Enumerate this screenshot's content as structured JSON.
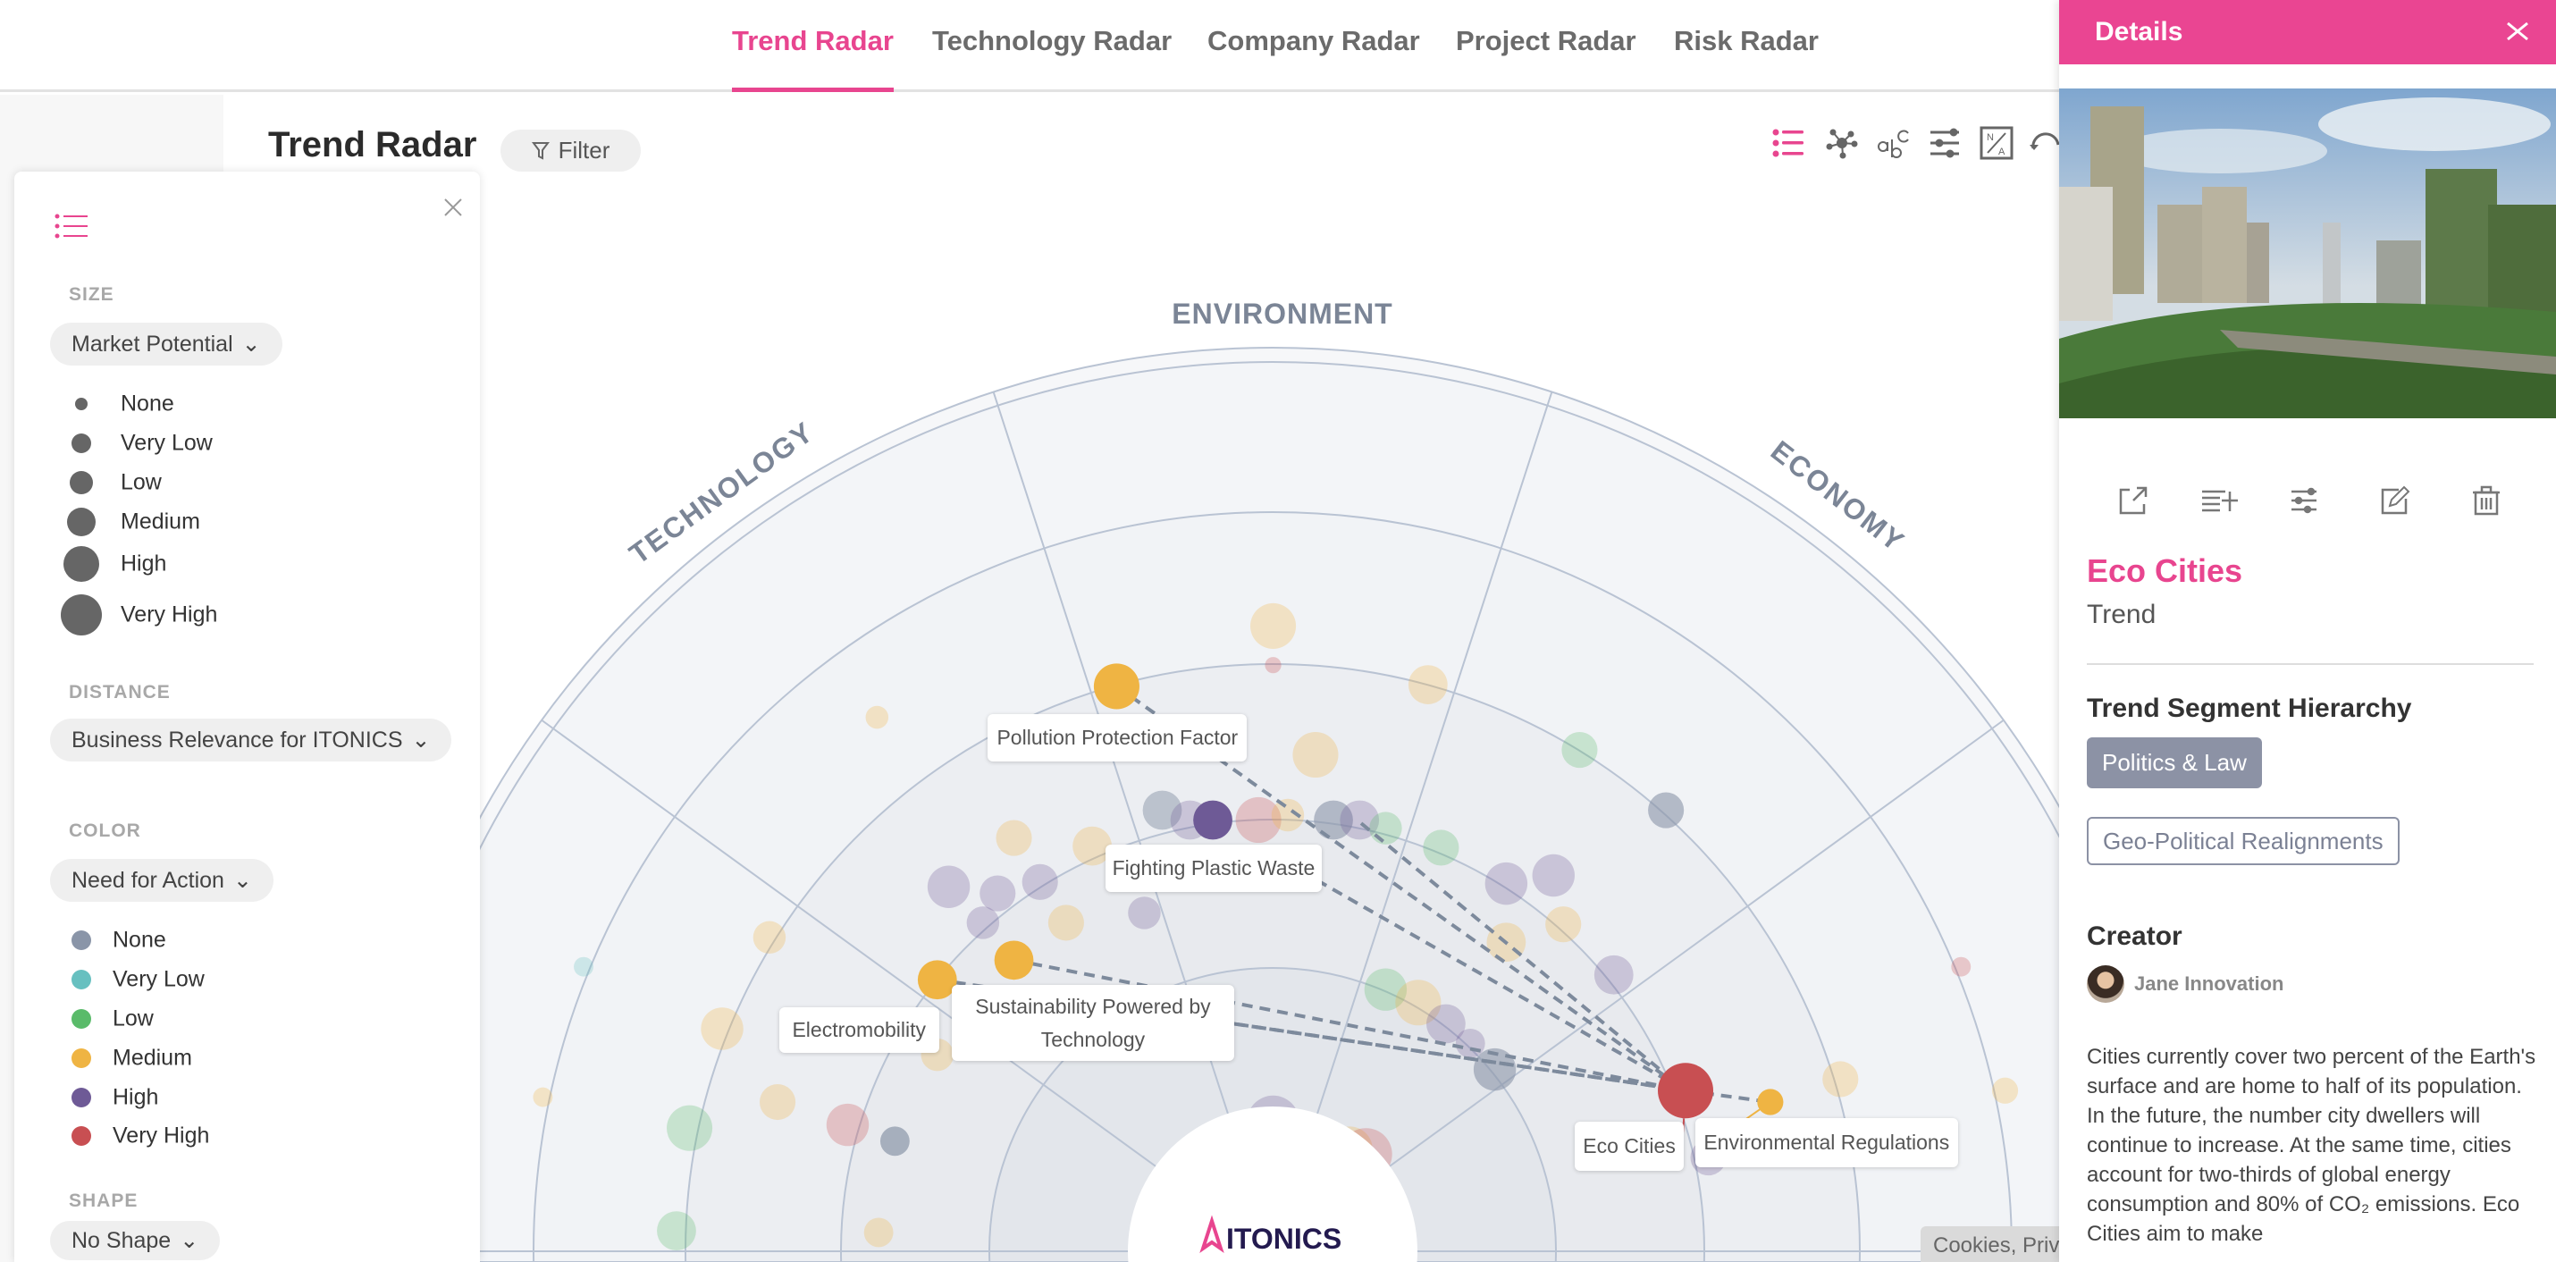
{
  "nav": {
    "tabs": [
      {
        "label": "Trend Radar",
        "active": true
      },
      {
        "label": "Technology Radar",
        "active": false
      },
      {
        "label": "Company Radar",
        "active": false
      },
      {
        "label": "Project Radar",
        "active": false
      },
      {
        "label": "Risk Radar",
        "active": false
      }
    ]
  },
  "header": {
    "title": "Trend Radar",
    "filter_label": "Filter"
  },
  "toolbar": {
    "icons": [
      "legend-list-icon",
      "network-icon",
      "text-label-icon",
      "sliders-icon",
      "na-toggle-icon",
      "rotate-icon"
    ],
    "active": "legend-list-icon"
  },
  "legend": {
    "size": {
      "label": "SIZE",
      "selected": "Market Potential",
      "items": [
        "None",
        "Very Low",
        "Low",
        "Medium",
        "High",
        "Very High"
      ]
    },
    "distance": {
      "label": "DISTANCE",
      "selected": "Business Relevance for ITONICS"
    },
    "color": {
      "label": "COLOR",
      "selected": "Need for Action",
      "items": [
        {
          "label": "None",
          "color": "#8a95a8"
        },
        {
          "label": "Very Low",
          "color": "#67c0c0"
        },
        {
          "label": "Low",
          "color": "#5abb6a"
        },
        {
          "label": "Medium",
          "color": "#efb443"
        },
        {
          "label": "High",
          "color": "#6e5a96"
        },
        {
          "label": "Very High",
          "color": "#c84f52"
        }
      ]
    },
    "shape": {
      "label": "SHAPE",
      "selected": "No Shape"
    }
  },
  "radar": {
    "segments": [
      "TECHNOLOGY",
      "ENVIRONMENT",
      "ECONOMY"
    ],
    "logo": "ITONICS",
    "highlighted": [
      {
        "label": "Pollution Protection Factor",
        "need": "Medium"
      },
      {
        "label": "Fighting Plastic Waste",
        "need": "High"
      },
      {
        "label": "Electromobility",
        "need": "Medium"
      },
      {
        "label": "Sustainability Powered by Technology",
        "need": "Medium"
      },
      {
        "label": "Eco Cities",
        "need": "Very High"
      },
      {
        "label": "Environmental Regulations",
        "need": "Medium"
      }
    ]
  },
  "cookies": "Cookies, Priv",
  "details": {
    "header": "Details",
    "actions": [
      "open-external-icon",
      "add-to-list-icon",
      "sliders-icon",
      "edit-icon",
      "trash-icon"
    ],
    "title": "Eco Cities",
    "type": "Trend",
    "hierarchy_label": "Trend Segment Hierarchy",
    "hierarchy": [
      "Politics & Law",
      "Geo-Political Realignments"
    ],
    "creator_label": "Creator",
    "creator": "Jane Innovation",
    "description": "Cities currently cover two percent of the Earth's surface and are home to half of its population. In the future, the number city dwellers will continue to increase. At the same time, cities account for two-thirds of global energy consumption and 80% of CO₂ emissions. Eco Cities aim to make"
  }
}
